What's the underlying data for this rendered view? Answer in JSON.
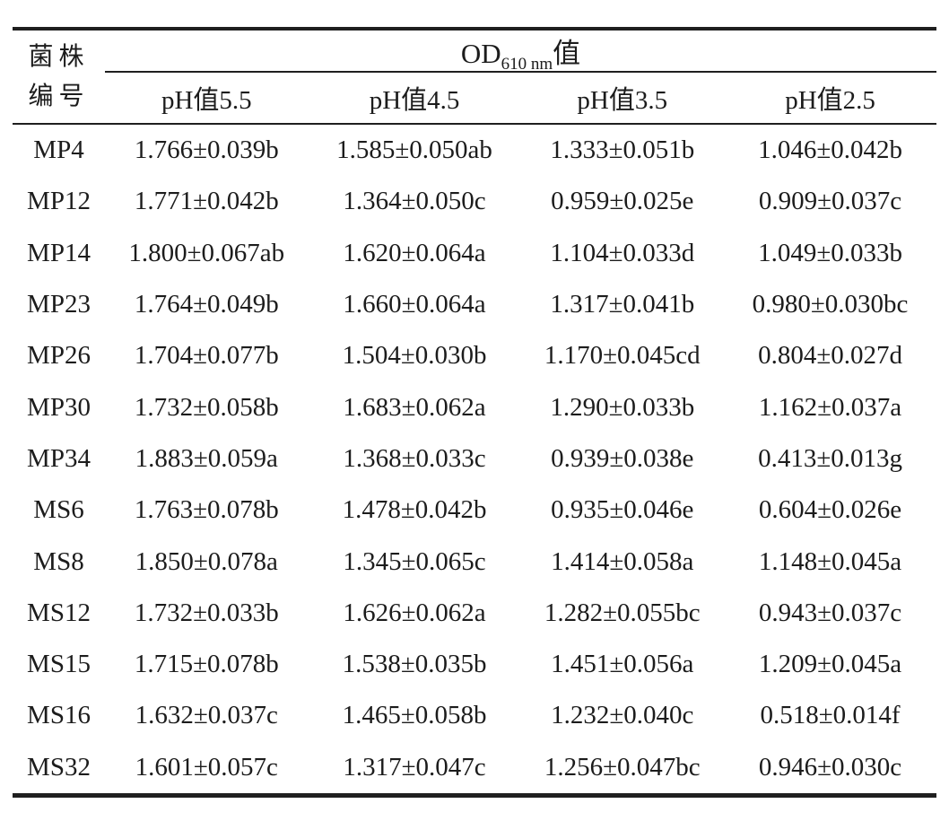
{
  "page": {
    "background": "#ffffff",
    "text_color": "#1c1c1c",
    "rule_color": "#1f1f1f"
  },
  "chart_data": {
    "type": "table",
    "header": {
      "strain_line1": "菌株",
      "strain_line2": "编号",
      "od_prefix": "OD",
      "od_subscript": "610 nm",
      "od_suffix": "值",
      "ph_columns": [
        "pH值5.5",
        "pH值4.5",
        "pH值3.5",
        "pH值2.5"
      ]
    },
    "rows": [
      {
        "strain": "MP4",
        "values": [
          "1.766±0.039b",
          "1.585±0.050ab",
          "1.333±0.051b",
          "1.046±0.042b"
        ]
      },
      {
        "strain": "MP12",
        "values": [
          "1.771±0.042b",
          "1.364±0.050c",
          "0.959±0.025e",
          "0.909±0.037c"
        ]
      },
      {
        "strain": "MP14",
        "values": [
          "1.800±0.067ab",
          "1.620±0.064a",
          "1.104±0.033d",
          "1.049±0.033b"
        ]
      },
      {
        "strain": "MP23",
        "values": [
          "1.764±0.049b",
          "1.660±0.064a",
          "1.317±0.041b",
          "0.980±0.030bc"
        ]
      },
      {
        "strain": "MP26",
        "values": [
          "1.704±0.077b",
          "1.504±0.030b",
          "1.170±0.045cd",
          "0.804±0.027d"
        ]
      },
      {
        "strain": "MP30",
        "values": [
          "1.732±0.058b",
          "1.683±0.062a",
          "1.290±0.033b",
          "1.162±0.037a"
        ]
      },
      {
        "strain": "MP34",
        "values": [
          "1.883±0.059a",
          "1.368±0.033c",
          "0.939±0.038e",
          "0.413±0.013g"
        ]
      },
      {
        "strain": "MS6",
        "values": [
          "1.763±0.078b",
          "1.478±0.042b",
          "0.935±0.046e",
          "0.604±0.026e"
        ]
      },
      {
        "strain": "MS8",
        "values": [
          "1.850±0.078a",
          "1.345±0.065c",
          "1.414±0.058a",
          "1.148±0.045a"
        ]
      },
      {
        "strain": "MS12",
        "values": [
          "1.732±0.033b",
          "1.626±0.062a",
          "1.282±0.055bc",
          "0.943±0.037c"
        ]
      },
      {
        "strain": "MS15",
        "values": [
          "1.715±0.078b",
          "1.538±0.035b",
          "1.451±0.056a",
          "1.209±0.045a"
        ]
      },
      {
        "strain": "MS16",
        "values": [
          "1.632±0.037c",
          "1.465±0.058b",
          "1.232±0.040c",
          "0.518±0.014f"
        ]
      },
      {
        "strain": "MS32",
        "values": [
          "1.601±0.057c",
          "1.317±0.047c",
          "1.256±0.047bc",
          "0.946±0.030c"
        ]
      }
    ]
  }
}
